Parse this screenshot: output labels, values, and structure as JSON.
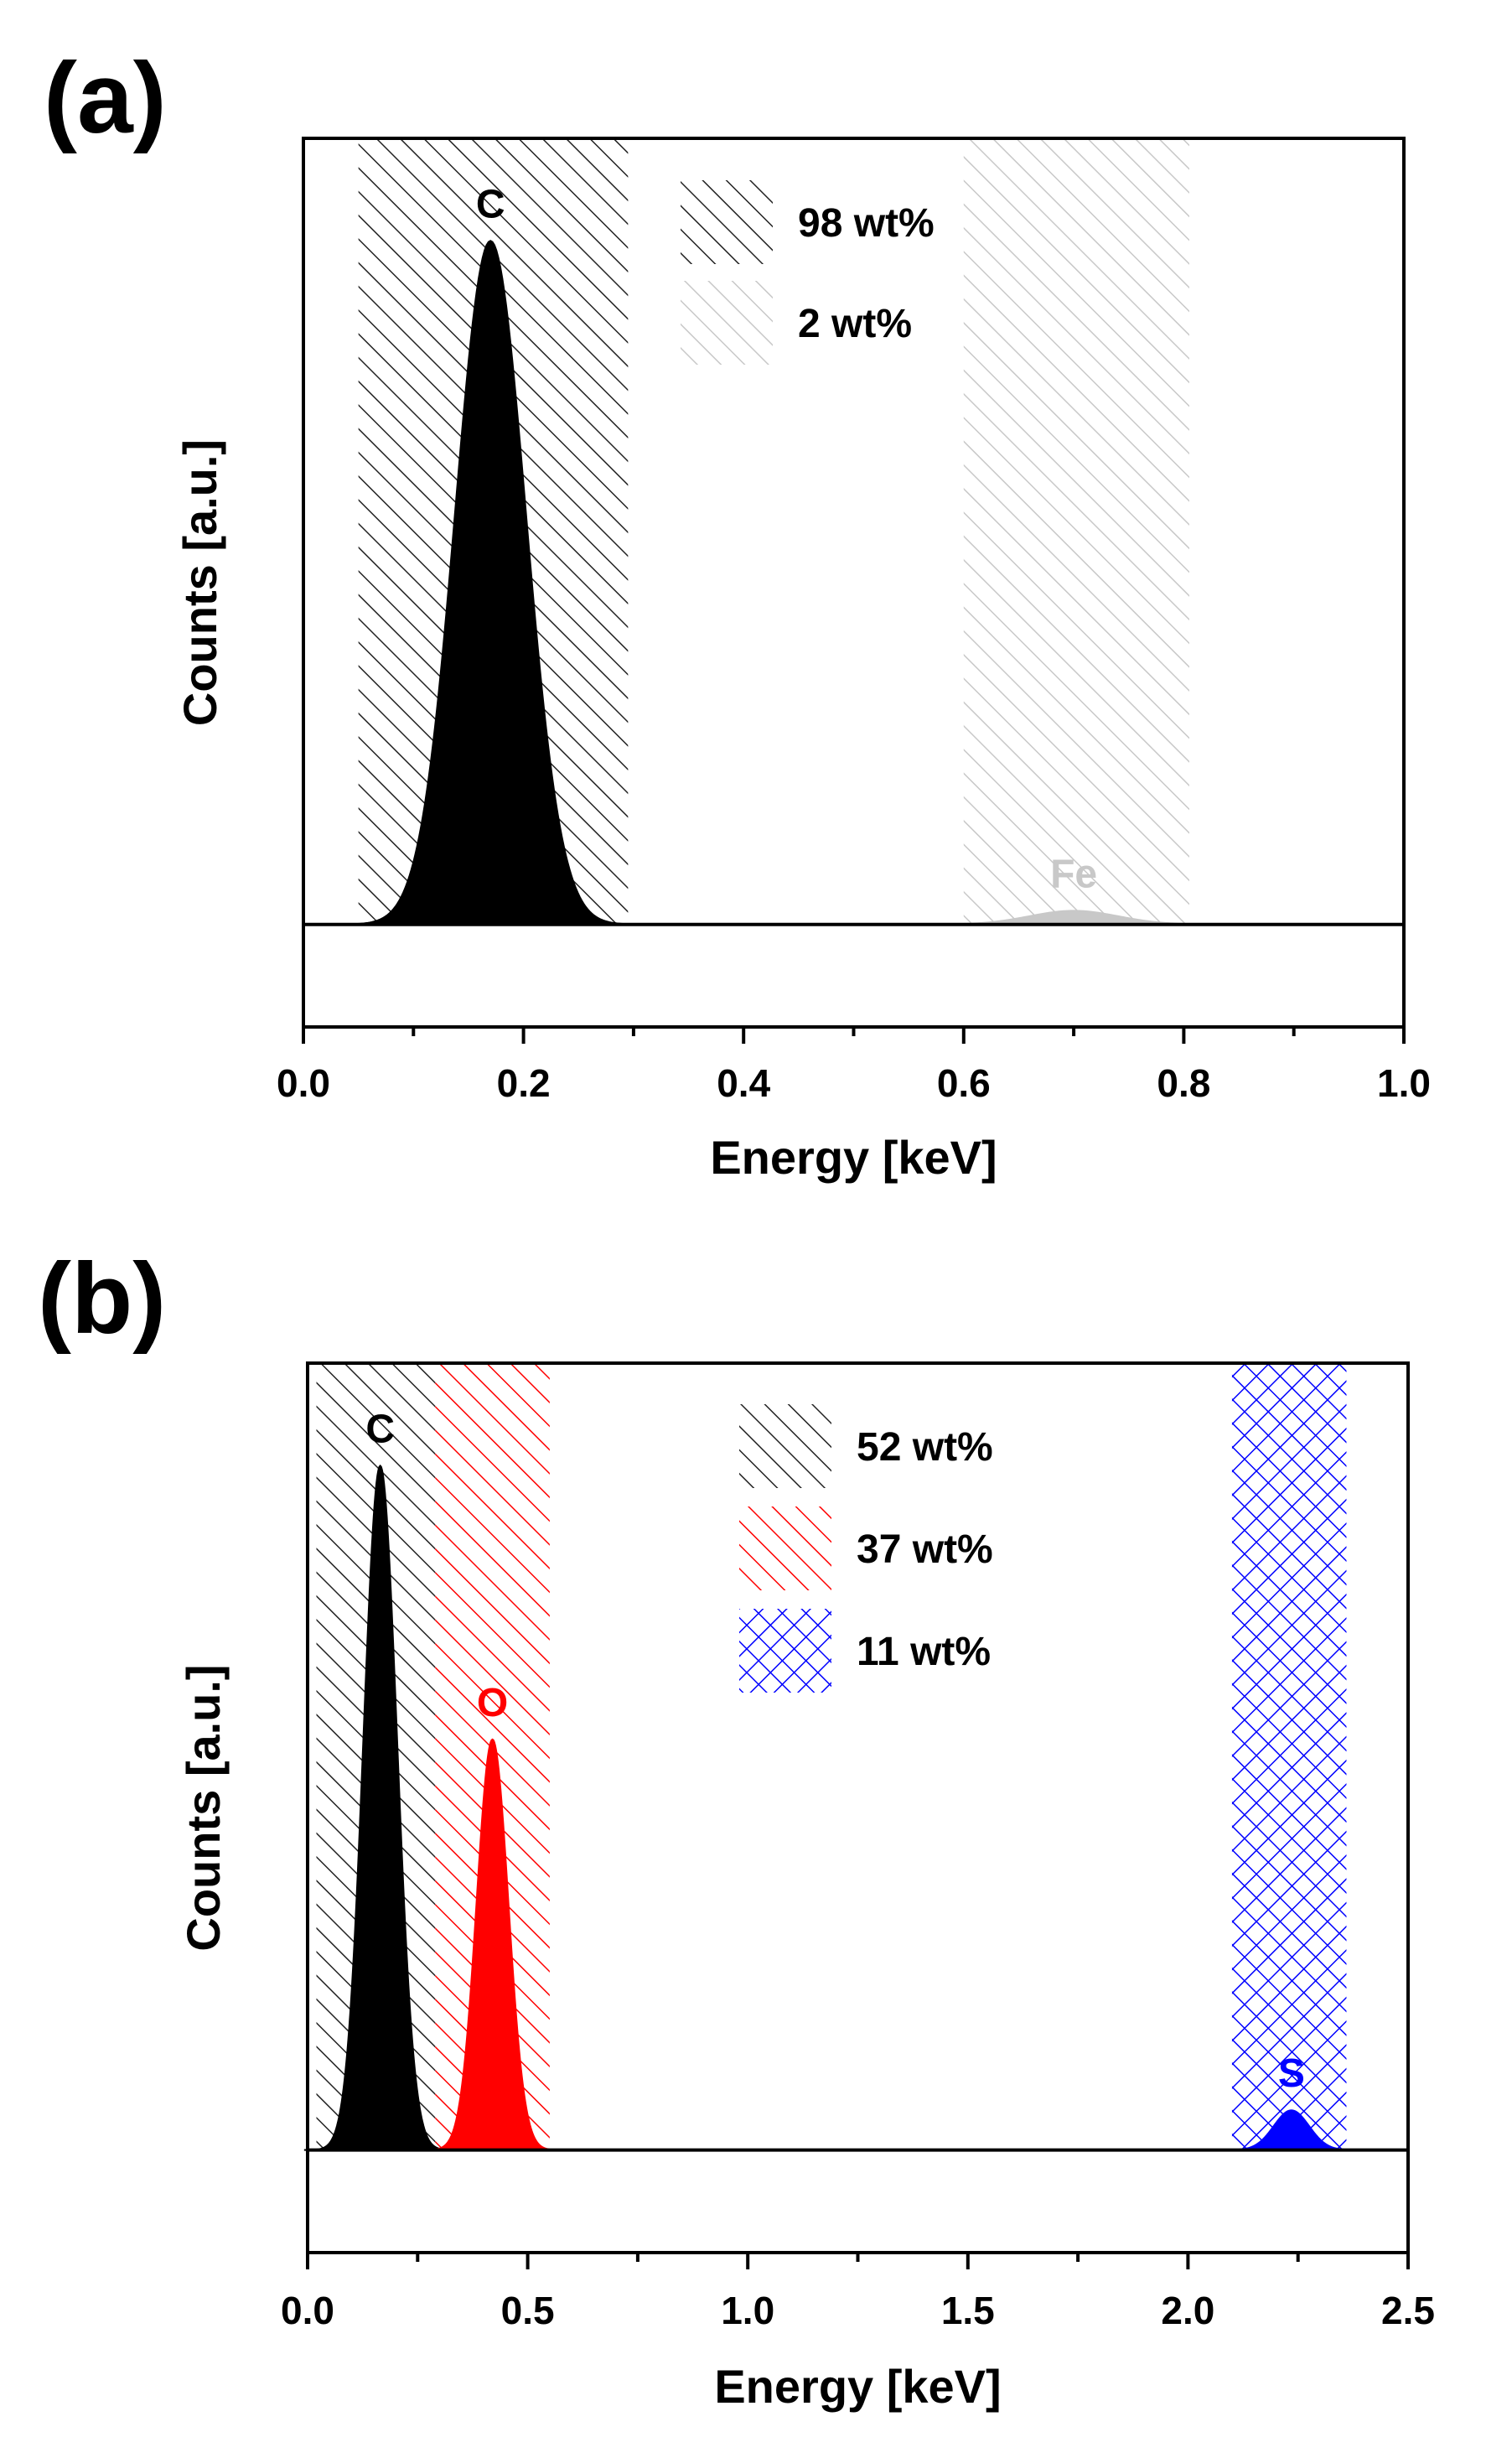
{
  "figure": {
    "panel_labels": [
      "(a)",
      "(b)"
    ]
  },
  "chart_data": [
    {
      "type": "area",
      "panel": "(a)",
      "title": "",
      "xlabel": "Energy [keV]",
      "ylabel": "Counts [a.u.]",
      "xlim": [
        0.0,
        1.0
      ],
      "x_ticks": [
        "0.0",
        "0.2",
        "0.4",
        "0.6",
        "0.8",
        "1.0"
      ],
      "x_tick_values": [
        0.0,
        0.2,
        0.4,
        0.6,
        0.8,
        1.0
      ],
      "ylim": [
        -0.15,
        1.15
      ],
      "y_ticks": [],
      "grid": false,
      "legend_position": "top-center",
      "baseline": 0,
      "series": [
        {
          "name": "C",
          "peak_label": "C",
          "color": "#000000",
          "center": 0.17,
          "sigma": 0.032,
          "amplitude": 1.0,
          "region": [
            0.05,
            0.295
          ],
          "hatch": "diagonal",
          "hatch_color": "#222222",
          "legend": "98 wt%"
        },
        {
          "name": "Fe",
          "peak_label": "Fe",
          "color": "#c8c8c8",
          "center": 0.7,
          "sigma": 0.04,
          "amplitude": 0.02,
          "region": [
            0.6,
            0.805
          ],
          "hatch": "diagonal",
          "hatch_color": "#c8c8c8",
          "legend": "2 wt%"
        }
      ]
    },
    {
      "type": "area",
      "panel": "(b)",
      "title": "",
      "xlabel": "Energy [keV]",
      "ylabel": "Counts [a.u.]",
      "xlim": [
        0.0,
        2.5
      ],
      "x_ticks": [
        "0.0",
        "0.5",
        "1.0",
        "1.5",
        "2.0",
        "2.5"
      ],
      "x_tick_values": [
        0.0,
        0.5,
        1.0,
        1.5,
        2.0,
        2.5
      ],
      "ylim": [
        -0.15,
        1.15
      ],
      "y_ticks": [],
      "grid": false,
      "legend_position": "top-center",
      "baseline": 0,
      "series": [
        {
          "name": "C",
          "peak_label": "C",
          "color": "#000000",
          "center": 0.165,
          "sigma": 0.038,
          "amplitude": 1.0,
          "region": [
            0.02,
            0.29
          ],
          "hatch": "diagonal",
          "hatch_color": "#222222",
          "legend": "52 wt%"
        },
        {
          "name": "O",
          "peak_label": "O",
          "color": "#ff0000",
          "center": 0.42,
          "sigma": 0.036,
          "amplitude": 0.6,
          "region": [
            0.29,
            0.55
          ],
          "hatch": "diagonal",
          "hatch_color": "#ff0000",
          "legend": "37 wt%"
        },
        {
          "name": "S",
          "peak_label": "S",
          "color": "#0000ff",
          "center": 2.235,
          "sigma": 0.04,
          "amplitude": 0.058,
          "region": [
            2.1,
            2.36
          ],
          "hatch": "crosshatch",
          "hatch_color": "#0000ff",
          "legend": "11 wt%"
        }
      ]
    }
  ]
}
